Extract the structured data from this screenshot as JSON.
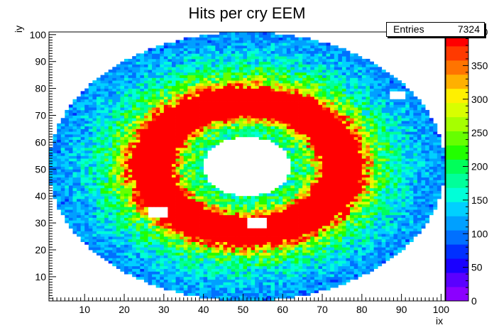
{
  "chart_data": {
    "type": "heatmap",
    "title": "Hits per cry EEM",
    "xlabel": "ix",
    "ylabel": "iy",
    "xlim": [
      1,
      101
    ],
    "ylim": [
      1,
      101
    ],
    "x_ticks": [
      10,
      20,
      30,
      40,
      50,
      60,
      70,
      80,
      90,
      100
    ],
    "y_ticks": [
      10,
      20,
      30,
      40,
      50,
      60,
      70,
      80,
      90,
      100
    ],
    "zlim": [
      0,
      400
    ],
    "z_ticks": [
      0,
      50,
      100,
      150,
      200,
      250,
      300,
      350,
      400
    ],
    "colorbar": "rainbow",
    "stats": {
      "label": "Entries",
      "value": "7324"
    },
    "grid": false,
    "layout": {
      "outer_radius": 50,
      "inner_radius": 11,
      "center": [
        51,
        51
      ],
      "missing_regions": [
        {
          "x": [
            26,
            30
          ],
          "y": [
            32,
            35
          ]
        },
        {
          "x": [
            51,
            55
          ],
          "y": [
            28,
            31
          ]
        },
        {
          "x": [
            87,
            90
          ],
          "y": [
            76,
            78
          ]
        }
      ]
    },
    "intensity_profile": [
      {
        "radius": 11,
        "z": 180
      },
      {
        "radius": 16,
        "z": 230
      },
      {
        "radius": 19,
        "z": 400
      },
      {
        "radius": 29,
        "z": 400
      },
      {
        "radius": 33,
        "z": 230
      },
      {
        "radius": 39,
        "z": 160
      },
      {
        "radius": 45,
        "z": 120
      },
      {
        "radius": 50,
        "z": 110
      }
    ]
  }
}
